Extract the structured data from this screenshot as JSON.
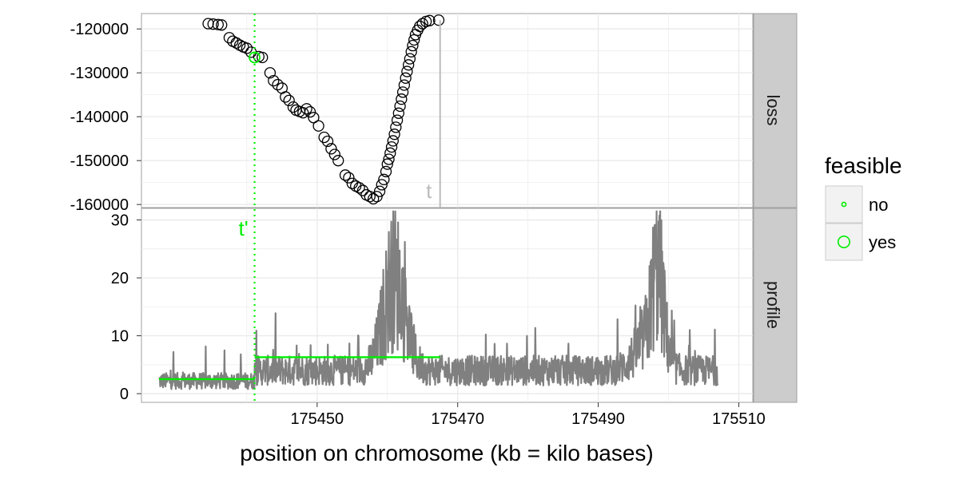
{
  "chart_data": {
    "type": "scatter+line",
    "facets": [
      "loss",
      "profile"
    ],
    "xlabel": "position on chromosome (kb = kilo bases)",
    "x_range_kb": [
      175425,
      175512
    ],
    "x_ticks": [
      "175450",
      "175470",
      "175490",
      "175510"
    ],
    "x_tick_values": [
      175450,
      175470,
      175490,
      175510
    ],
    "loss_panel": {
      "y_ticks": [
        "-120000",
        "-130000",
        "-140000",
        "-150000",
        "-160000"
      ],
      "y_tick_values": [
        -120000,
        -130000,
        -140000,
        -150000,
        -160000
      ],
      "ylim": [
        -160700,
        -116500
      ],
      "points": [
        [
          175434.5,
          -118800
        ],
        [
          175435.2,
          -118900
        ],
        [
          175435.9,
          -119000
        ],
        [
          175436.4,
          -119100
        ],
        [
          175437.5,
          -122000
        ],
        [
          175438.0,
          -122800
        ],
        [
          175438.5,
          -123200
        ],
        [
          175439.0,
          -123700
        ],
        [
          175439.5,
          -124100
        ],
        [
          175440.0,
          -124400
        ],
        [
          175440.6,
          -125300
        ],
        [
          175441.7,
          -126300
        ],
        [
          175442.2,
          -126500
        ],
        [
          175443.3,
          -130000
        ],
        [
          175443.8,
          -131800
        ],
        [
          175444.4,
          -132700
        ],
        [
          175445.0,
          -133500
        ],
        [
          175445.5,
          -135500
        ],
        [
          175446.0,
          -136300
        ],
        [
          175446.6,
          -137800
        ],
        [
          175447.0,
          -138500
        ],
        [
          175447.5,
          -138800
        ],
        [
          175448.0,
          -139100
        ],
        [
          175448.5,
          -138200
        ],
        [
          175449.0,
          -138900
        ],
        [
          175449.5,
          -140200
        ],
        [
          175450.2,
          -142100
        ],
        [
          175451.0,
          -144700
        ],
        [
          175451.5,
          -145600
        ],
        [
          175452.0,
          -147300
        ],
        [
          175452.5,
          -148600
        ],
        [
          175453.0,
          -150000
        ],
        [
          175454.0,
          -153300
        ],
        [
          175454.5,
          -153900
        ],
        [
          175455.0,
          -155200
        ],
        [
          175455.5,
          -155800
        ],
        [
          175456.0,
          -156200
        ],
        [
          175456.5,
          -156800
        ],
        [
          175457.0,
          -157800
        ],
        [
          175457.5,
          -158200
        ],
        [
          175458.0,
          -158700
        ],
        [
          175458.5,
          -158200
        ],
        [
          175458.9,
          -157000
        ],
        [
          175459.2,
          -155500
        ],
        [
          175459.5,
          -154300
        ],
        [
          175459.8,
          -152500
        ],
        [
          175460.0,
          -150800
        ],
        [
          175460.2,
          -149700
        ],
        [
          175460.4,
          -148300
        ],
        [
          175460.6,
          -146900
        ],
        [
          175460.8,
          -145500
        ],
        [
          175461.0,
          -144000
        ],
        [
          175461.2,
          -142400
        ],
        [
          175461.4,
          -140800
        ],
        [
          175461.6,
          -139200
        ],
        [
          175461.8,
          -137600
        ],
        [
          175462.0,
          -136000
        ],
        [
          175462.2,
          -134400
        ],
        [
          175462.4,
          -132800
        ],
        [
          175462.6,
          -131200
        ],
        [
          175462.8,
          -129700
        ],
        [
          175463.0,
          -128200
        ],
        [
          175463.2,
          -126800
        ],
        [
          175463.4,
          -125200
        ],
        [
          175463.6,
          -123800
        ],
        [
          175463.8,
          -122500
        ],
        [
          175464.0,
          -121300
        ],
        [
          175464.3,
          -120300
        ],
        [
          175464.6,
          -119400
        ],
        [
          175465.0,
          -118800
        ],
        [
          175465.5,
          -118300
        ],
        [
          175466.0,
          -118100
        ],
        [
          175467.3,
          -118000
        ]
      ],
      "selected_point": [
        175441.1,
        -126500
      ],
      "annotation_t": "t",
      "t_position_kb": 175467.5
    },
    "profile_panel": {
      "y_ticks": [
        "30",
        "20",
        "10",
        "0"
      ],
      "y_tick_values": [
        30,
        20,
        10,
        0
      ],
      "ylim": [
        -1.5,
        32
      ],
      "x_start_kb": 175427.5,
      "x_end_kb": 175507,
      "segments": [
        {
          "x0": 175427.5,
          "x1": 175441.1,
          "mean": 2.5
        },
        {
          "x0": 175441.1,
          "x1": 175467.5,
          "mean": 6.3
        }
      ],
      "annotation_t_prime": "t'"
    },
    "changepoint_kb": 175441.1,
    "legend": {
      "title": "feasible",
      "entries": [
        "no",
        "yes"
      ]
    }
  },
  "colors": {
    "panel_bg": "#ffffff",
    "grid": "#ebebeb",
    "strip_bg": "#cccccc",
    "profile_line": "#808080",
    "highlight": "#00ee00",
    "t_line": "#bbbbbb"
  }
}
